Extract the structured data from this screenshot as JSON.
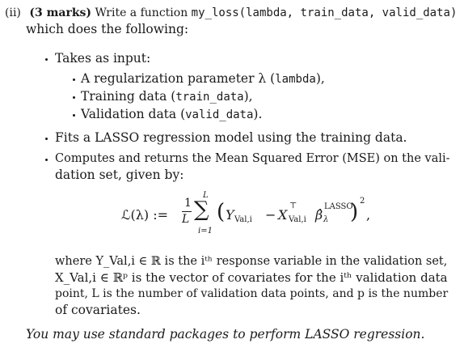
{
  "question": {
    "label": "(ii)",
    "marks": "(3 marks)",
    "intro": "Write a function",
    "signature": "my_loss(lambda, train_data, valid_data)",
    "intro_cont": "which does the following:"
  },
  "bullets": {
    "takes_input": "Takes as input:",
    "sub": [
      {
        "text": "A regularization parameter λ (",
        "code": "lambda",
        "end": "),"
      },
      {
        "text": "Training data (",
        "code": "train_data",
        "end": "),"
      },
      {
        "text": "Validation data (",
        "code": "valid_data",
        "end": ")."
      }
    ],
    "fit": "Fits a LASSO regression model using the training data.",
    "computes_line1": "Computes and returns the Mean Squared Error (MSE) on the vali-",
    "computes_line2": "dation set, given by:"
  },
  "formula": {
    "lhs": "ℒ(λ) :=",
    "frac_num": "1",
    "frac_den": "L",
    "sum_top": "L",
    "sum_bottom": "i=1",
    "sigma": "∑",
    "open_paren": "(",
    "y": "Y",
    "y_sub": "Val,i",
    "minus": "−",
    "x": "X",
    "x_sup": "⊤",
    "x_sub": "Val,i",
    "beta": "β̂",
    "beta_sup": "LASSO",
    "beta_sub": "λ",
    "close_paren": ")",
    "power": "2",
    "tail": ","
  },
  "where": {
    "line1": "where Y_Val,i ∈ ℝ is the iᵗʰ response variable in the validation set,",
    "line2": "X_Val,i ∈ ℝᵖ is the vector of covariates for the iᵗʰ validation data",
    "line3": "point, L is the number of validation data points, and p is the number",
    "line4": "of covariates."
  },
  "note": "You may use standard packages to perform LASSO regression."
}
